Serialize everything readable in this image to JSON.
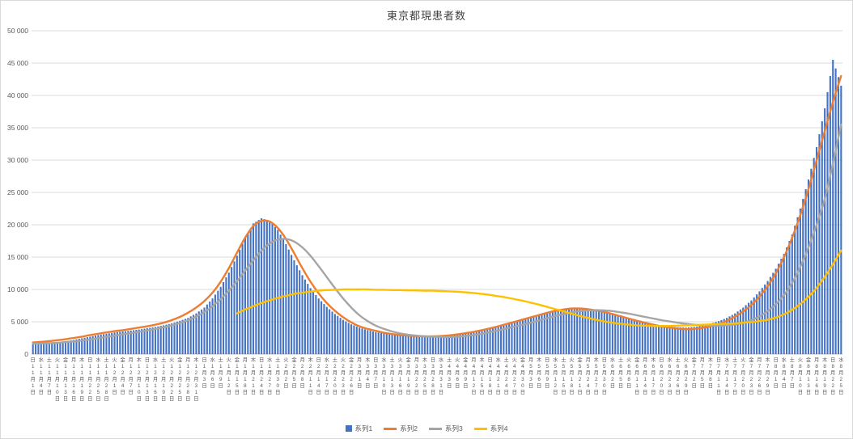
{
  "chart_data": {
    "type": "bar",
    "title": "東京都現患者数",
    "ylim": [
      0,
      50000
    ],
    "ytick": 5000,
    "grid": true,
    "legend_position": "bottom",
    "categories": {
      "weekdays": [
        "日",
        "水",
        "土",
        "火",
        "金",
        "月",
        "木",
        "日",
        "水",
        "土",
        "火",
        "金",
        "月",
        "木",
        "日",
        "水",
        "土",
        "火",
        "金",
        "月",
        "木",
        "日",
        "水",
        "土",
        "火",
        "金",
        "月",
        "木",
        "日",
        "水",
        "土",
        "火",
        "金",
        "月",
        "木",
        "日",
        "水",
        "土",
        "火",
        "金",
        "月",
        "木",
        "日",
        "水",
        "土",
        "火",
        "金",
        "月",
        "木",
        "日",
        "水",
        "土",
        "火",
        "金",
        "月",
        "木",
        "日",
        "水",
        "土",
        "火",
        "金",
        "月",
        "木",
        "日",
        "水",
        "土",
        "火",
        "金",
        "月",
        "木",
        "日",
        "水",
        "土",
        "火",
        "金",
        "月",
        "木",
        "日",
        "水",
        "土",
        "火",
        "金",
        "月",
        "木",
        "日",
        "水",
        "土",
        "火",
        "金",
        "月",
        "木",
        "日",
        "水",
        "土",
        "火",
        "金",
        "月",
        "木",
        "日",
        "水"
      ],
      "months": [
        11,
        11,
        11,
        11,
        11,
        11,
        11,
        11,
        11,
        11,
        12,
        12,
        12,
        12,
        12,
        12,
        12,
        12,
        12,
        12,
        12,
        1,
        1,
        1,
        1,
        1,
        1,
        1,
        1,
        1,
        1,
        2,
        2,
        2,
        2,
        2,
        2,
        2,
        2,
        2,
        3,
        3,
        3,
        3,
        3,
        3,
        3,
        3,
        3,
        3,
        3,
        4,
        4,
        4,
        4,
        4,
        4,
        4,
        4,
        4,
        4,
        5,
        5,
        5,
        5,
        5,
        5,
        5,
        5,
        5,
        5,
        6,
        6,
        6,
        6,
        6,
        6,
        6,
        6,
        6,
        6,
        7,
        7,
        7,
        7,
        7,
        7,
        7,
        7,
        7,
        7,
        8,
        8,
        8,
        8,
        8,
        8,
        8,
        8,
        8
      ],
      "days": [
        1,
        4,
        7,
        10,
        13,
        16,
        19,
        22,
        25,
        28,
        1,
        4,
        7,
        10,
        13,
        16,
        19,
        22,
        25,
        28,
        31,
        3,
        6,
        9,
        12,
        15,
        18,
        21,
        24,
        27,
        30,
        2,
        5,
        8,
        11,
        14,
        17,
        20,
        23,
        26,
        1,
        4,
        7,
        10,
        13,
        16,
        19,
        22,
        25,
        28,
        31,
        3,
        6,
        9,
        12,
        15,
        18,
        21,
        24,
        27,
        30,
        3,
        6,
        9,
        12,
        15,
        18,
        21,
        24,
        27,
        30,
        2,
        5,
        8,
        11,
        14,
        17,
        20,
        23,
        26,
        29,
        2,
        5,
        8,
        11,
        14,
        17,
        20,
        23,
        26,
        29,
        1,
        4,
        7,
        10,
        13,
        16,
        19,
        22,
        25
      ],
      "month_suffix": "月",
      "day_suffix": "日"
    },
    "series": [
      {
        "name": "系列1",
        "kind": "bar",
        "color": "#4472C4",
        "values": [
          1600,
          1700,
          1750,
          1850,
          2000,
          2200,
          2450,
          2700,
          2950,
          3150,
          3350,
          3500,
          3650,
          3800,
          4000,
          4200,
          4450,
          4750,
          5150,
          5600,
          6300,
          7200,
          8600,
          10400,
          12600,
          15200,
          18000,
          20200,
          21000,
          20600,
          19200,
          17000,
          14500,
          12200,
          10200,
          8600,
          7300,
          6200,
          5300,
          4600,
          4100,
          3700,
          3400,
          3200,
          3000,
          2900,
          2800,
          2750,
          2700,
          2700,
          2750,
          2850,
          3000,
          3200,
          3400,
          3650,
          3950,
          4250,
          4600,
          4950,
          5300,
          5650,
          6000,
          6350,
          6650,
          6900,
          7050,
          7100,
          7000,
          6800,
          6550,
          6250,
          5900,
          5550,
          5200,
          4900,
          4650,
          4400,
          4250,
          4150,
          4100,
          4200,
          4400,
          4700,
          5100,
          5600,
          6300,
          7200,
          8300,
          9700,
          11300,
          13200,
          15500,
          18500,
          22500,
          27000,
          32000,
          38000,
          45500,
          41500
        ]
      },
      {
        "name": "系列2",
        "kind": "line",
        "color": "#ED7D31",
        "values": [
          1800,
          1900,
          2000,
          2150,
          2300,
          2500,
          2700,
          2950,
          3150,
          3350,
          3550,
          3700,
          3900,
          4100,
          4300,
          4550,
          4850,
          5250,
          5750,
          6400,
          7200,
          8200,
          9500,
          11200,
          13300,
          15700,
          18000,
          19800,
          20600,
          20500,
          19500,
          17800,
          15600,
          13300,
          11200,
          9400,
          7900,
          6700,
          5700,
          4900,
          4300,
          3900,
          3600,
          3300,
          3100,
          2950,
          2850,
          2800,
          2750,
          2750,
          2800,
          2900,
          3050,
          3250,
          3450,
          3700,
          4000,
          4300,
          4650,
          5000,
          5350,
          5700,
          6050,
          6400,
          6700,
          6900,
          7050,
          7050,
          6950,
          6750,
          6500,
          6200,
          5850,
          5500,
          5150,
          4850,
          4550,
          4300,
          4100,
          3950,
          3850,
          3900,
          4050,
          4300,
          4650,
          5150,
          5800,
          6600,
          7600,
          8900,
          10500,
          12500,
          15000,
          18000,
          21500,
          25500,
          30000,
          34500,
          39000,
          43000
        ]
      },
      {
        "name": "系列3",
        "kind": "line",
        "color": "#A5A5A5",
        "values": [
          1600,
          1650,
          1700,
          1750,
          1850,
          1950,
          2100,
          2250,
          2450,
          2650,
          2850,
          3050,
          3250,
          3450,
          3650,
          3900,
          4150,
          4450,
          4800,
          5250,
          5800,
          6500,
          7400,
          8500,
          9800,
          11300,
          12900,
          14500,
          16000,
          17100,
          17700,
          17800,
          17400,
          16500,
          15200,
          13600,
          11900,
          10200,
          8600,
          7200,
          6000,
          5100,
          4400,
          3900,
          3500,
          3200,
          3000,
          2850,
          2750,
          2700,
          2650,
          2650,
          2700,
          2800,
          2950,
          3150,
          3400,
          3650,
          3950,
          4250,
          4550,
          4850,
          5200,
          5550,
          5900,
          6200,
          6450,
          6650,
          6750,
          6800,
          6750,
          6650,
          6450,
          6250,
          6000,
          5750,
          5500,
          5250,
          5050,
          4850,
          4700,
          4550,
          4450,
          4400,
          4400,
          4450,
          4600,
          4850,
          5250,
          5850,
          6650,
          7700,
          9100,
          11000,
          13500,
          16500,
          20000,
          24000,
          29500,
          35500
        ]
      },
      {
        "name": "系列4",
        "kind": "line",
        "color": "#FFC000",
        "values": [
          null,
          null,
          null,
          null,
          null,
          null,
          null,
          null,
          null,
          null,
          null,
          null,
          null,
          null,
          null,
          null,
          null,
          null,
          null,
          null,
          null,
          null,
          null,
          null,
          null,
          6300,
          6900,
          7400,
          7900,
          8300,
          8700,
          9000,
          9300,
          9500,
          9650,
          9800,
          9900,
          9950,
          10000,
          10000,
          10000,
          10000,
          9950,
          9950,
          9900,
          9900,
          9850,
          9850,
          9800,
          9800,
          9750,
          9700,
          9650,
          9550,
          9450,
          9300,
          9150,
          8950,
          8750,
          8500,
          8250,
          7950,
          7650,
          7300,
          6950,
          6600,
          6250,
          5900,
          5600,
          5300,
          5050,
          4850,
          4700,
          4550,
          4450,
          4400,
          4350,
          4350,
          4350,
          4400,
          4450,
          4500,
          4550,
          4600,
          4650,
          4700,
          4750,
          4850,
          4950,
          5100,
          5300,
          5650,
          6150,
          6850,
          7750,
          8850,
          10250,
          11950,
          13900,
          16000
        ]
      }
    ]
  }
}
